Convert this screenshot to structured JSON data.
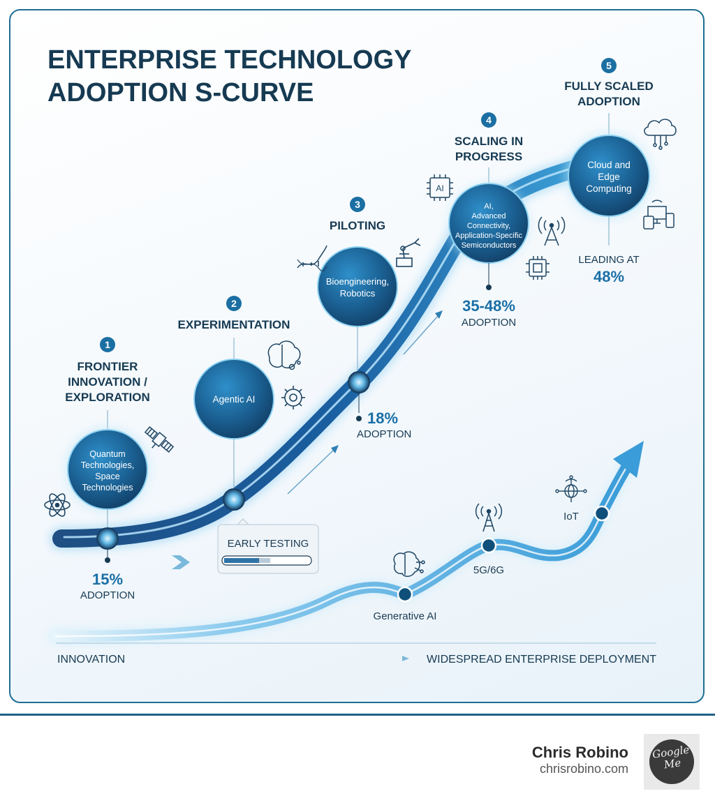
{
  "title": {
    "line1": "ENTERPRISE TECHNOLOGY",
    "line2": "ADOPTION S-CURVE"
  },
  "stages": [
    {
      "number": "1",
      "label_lines": [
        "FRONTIER",
        "INNOVATION /",
        "EXPLORATION"
      ],
      "tech_lines": [
        "Quantum",
        "Technologies,",
        "Space",
        "Technologies"
      ],
      "stat": "15%",
      "stat_caption": "ADOPTION",
      "icons": [
        "atom-icon",
        "satellite-icon"
      ]
    },
    {
      "number": "2",
      "label_lines": [
        "EXPERIMENTATION"
      ],
      "tech_lines": [
        "Agentic AI"
      ],
      "badge": "EARLY TESTING",
      "icons": [
        "brain-circuit-icon",
        "gear-icon"
      ]
    },
    {
      "number": "3",
      "label_lines": [
        "PILOTING"
      ],
      "tech_lines": [
        "Bioengineering,",
        "Robotics"
      ],
      "stat": "18%",
      "stat_caption": "ADOPTION",
      "icons": [
        "dna-icon",
        "robot-arm-icon"
      ]
    },
    {
      "number": "4",
      "label_lines": [
        "SCALING IN",
        "PROGRESS"
      ],
      "tech_lines": [
        "AI,",
        "Advanced",
        "Connectivity,",
        "Application-Specific",
        "Semiconductors"
      ],
      "stat": "35-48%",
      "stat_caption": "ADOPTION",
      "ai_chip_label": "AI",
      "icons": [
        "ai-chip-icon",
        "antenna-icon",
        "chip-icon"
      ]
    },
    {
      "number": "5",
      "label_lines": [
        "FULLY SCALED",
        "ADOPTION"
      ],
      "tech_lines": [
        "Cloud and",
        "Edge",
        "Computing"
      ],
      "stat_caption": "LEADING AT",
      "stat": "48%",
      "icons": [
        "cloud-icon",
        "devices-icon"
      ]
    }
  ],
  "secondary_curve": {
    "labels": [
      "Generative AI",
      "5G/6G",
      "IoT"
    ],
    "icons": [
      "brain-icon",
      "cell-tower-icon",
      "globe-network-icon"
    ]
  },
  "axis": {
    "start_label": "INNOVATION",
    "end_label": "WIDESPREAD ENTERPRISE DEPLOYMENT"
  },
  "author": {
    "name": "Chris Robino",
    "site": "chrisrobino.com",
    "logo_text_1": "Google",
    "logo_text_2": "Me"
  },
  "colors": {
    "navy": "#163a52",
    "blue": "#1b6fa3",
    "light_blue": "#4fb0e4",
    "accent": "#1a7fb8"
  }
}
